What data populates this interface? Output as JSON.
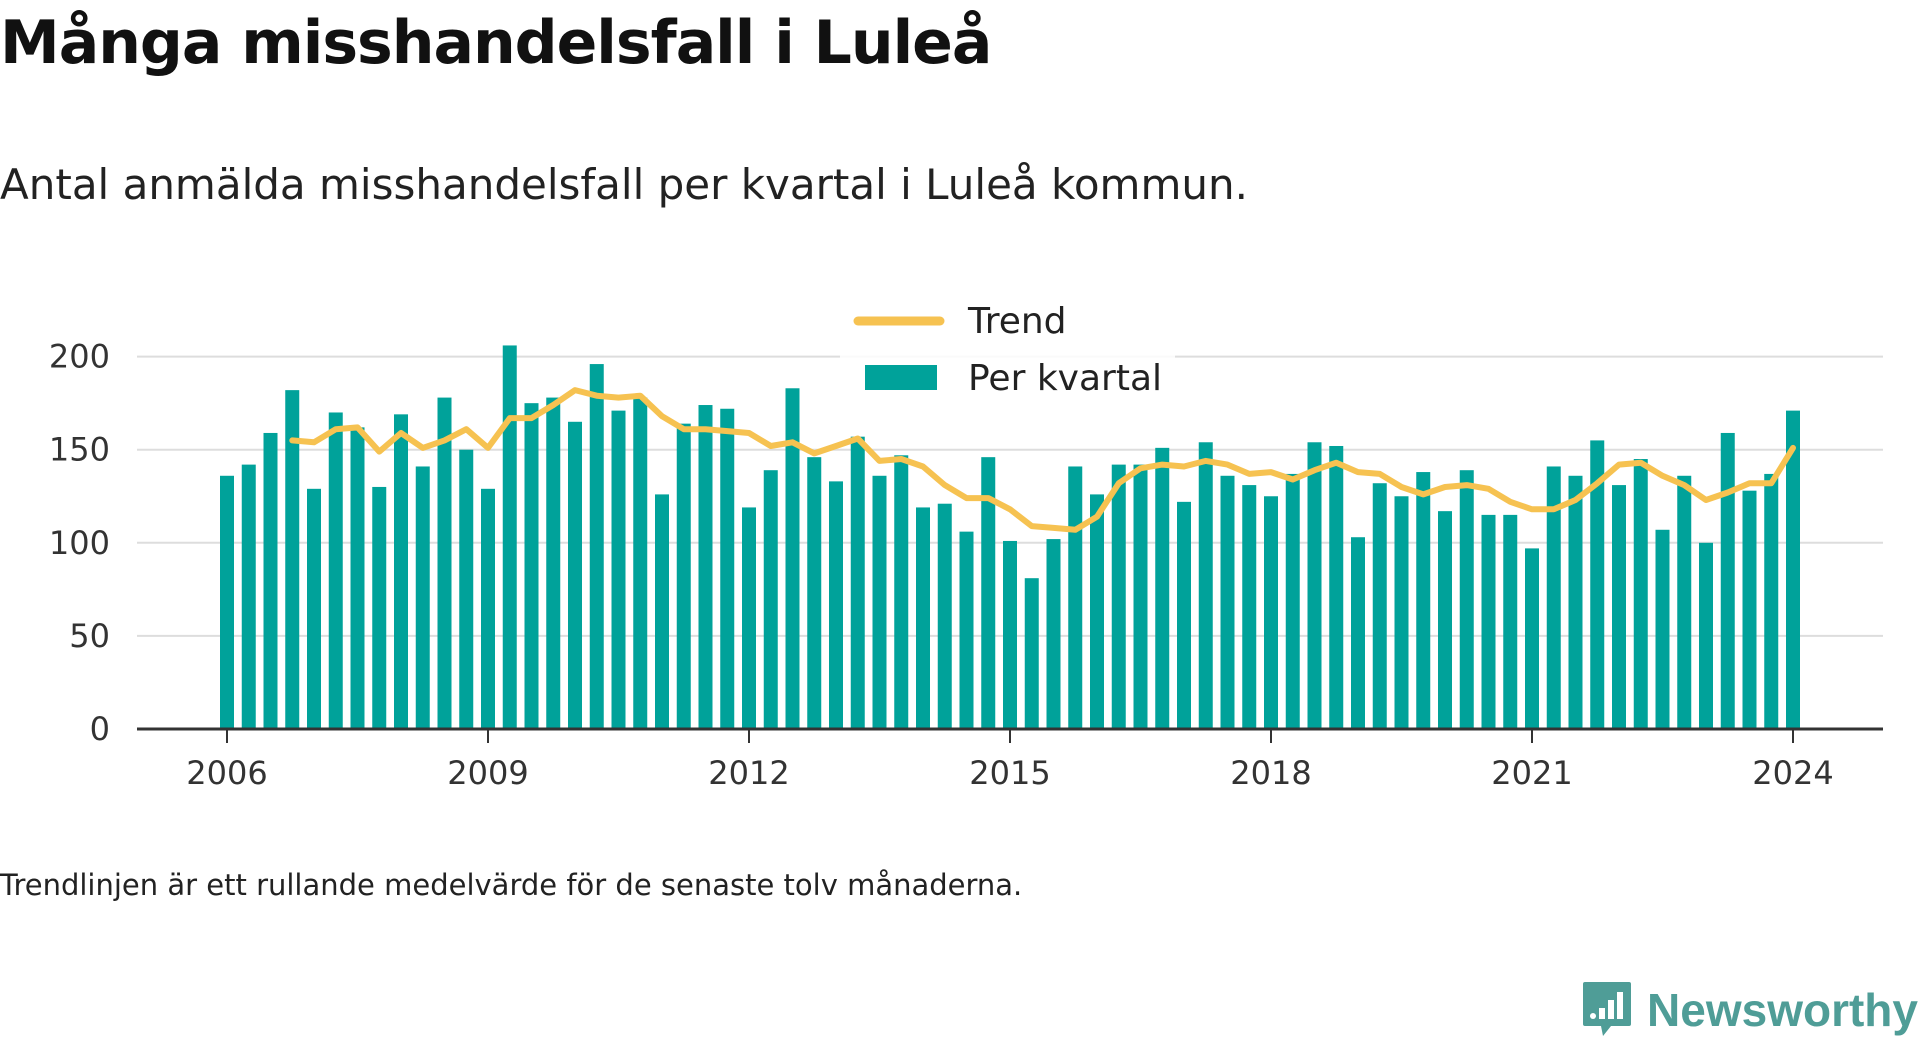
{
  "header": {
    "title": "Många misshandelsfall i Luleå",
    "subtitle": "Antal anmälda misshandelsfall per kvartal i Luleå kommun."
  },
  "footnote": "Trendlinjen är ett rullande medelvärde för de senaste tolv månaderna.",
  "brand": {
    "name": "Newsworthy",
    "icon": "newsworthy-logo-icon",
    "color": "#4f9d97"
  },
  "colors": {
    "bars": "#00a29a",
    "trend": "#f6c251",
    "grid": "#dddddd",
    "axis": "#333333"
  },
  "chart_data": {
    "type": "bar",
    "x_kind": "quarter",
    "start": "2006-Q1",
    "ylim": [
      0,
      210
    ],
    "yticks": [
      0,
      50,
      100,
      150,
      200
    ],
    "xticks": [
      "2006",
      "2009",
      "2012",
      "2015",
      "2018",
      "2021",
      "2024"
    ],
    "grid": true,
    "legend_position": "top-center",
    "series": [
      {
        "name": "Per kvartal",
        "kind": "bar",
        "values": [
          136,
          142,
          159,
          182,
          129,
          170,
          162,
          130,
          169,
          141,
          178,
          150,
          129,
          206,
          175,
          178,
          165,
          196,
          171,
          178,
          126,
          164,
          174,
          172,
          119,
          139,
          183,
          146,
          133,
          157,
          136,
          147,
          119,
          121,
          106,
          146,
          101,
          81,
          102,
          141,
          126,
          142,
          142,
          151,
          122,
          154,
          136,
          131,
          125,
          137,
          154,
          152,
          103,
          132,
          125,
          138,
          117,
          139,
          115,
          115,
          97,
          141,
          136,
          155,
          131,
          145,
          107,
          136,
          100,
          159,
          128,
          137,
          171
        ]
      },
      {
        "name": "Trend",
        "kind": "line",
        "values": [
          null,
          null,
          null,
          155,
          154,
          161,
          162,
          149,
          159,
          151,
          155,
          161,
          151,
          167,
          167,
          174,
          182,
          179,
          178,
          179,
          168,
          161,
          161,
          160,
          159,
          152,
          154,
          148,
          152,
          156,
          144,
          145,
          141,
          131,
          124,
          124,
          118,
          109,
          108,
          107,
          114,
          132,
          140,
          142,
          141,
          144,
          142,
          137,
          138,
          134,
          139,
          143,
          138,
          137,
          130,
          126,
          130,
          131,
          129,
          122,
          118,
          118,
          123,
          132,
          142,
          143,
          136,
          131,
          123,
          127,
          132,
          132,
          151
        ]
      }
    ]
  }
}
